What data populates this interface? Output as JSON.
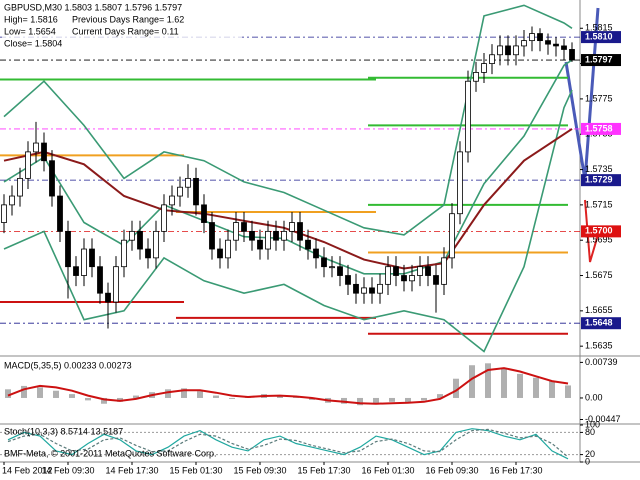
{
  "chart_data": [
    {
      "type": "candlestick",
      "title": "GBPUSD,M30  1.5803 1.5807 1.5796 1.5797",
      "annotations": [
        "High= 1.5816",
        "Previous Days Range= 1.62",
        "Low= 1.5654",
        "Current Days Range= 0.11",
        "Close= 1.5804"
      ],
      "xticks": [
        {
          "value": 0,
          "label": "14 Feb 2012"
        },
        {
          "value": 8,
          "label": "14 Feb 09:30"
        },
        {
          "value": 16,
          "label": "14 Feb 17:30"
        },
        {
          "value": 24,
          "label": "15 Feb 01:30"
        },
        {
          "value": 32,
          "label": "15 Feb 09:30"
        },
        {
          "value": 40,
          "label": "15 Feb 17:30"
        },
        {
          "value": 48,
          "label": "16 Feb 01:30"
        },
        {
          "value": 56,
          "label": "16 Feb 09:30"
        },
        {
          "value": 64,
          "label": "16 Feb 17:30"
        }
      ],
      "open": [
        1.5705,
        1.5715,
        1.572,
        1.573,
        1.5745,
        1.575,
        1.574,
        1.572,
        1.57,
        1.568,
        1.5675,
        1.569,
        1.568,
        1.5665,
        1.566,
        1.568,
        1.5695,
        1.57,
        1.569,
        1.5685,
        1.57,
        1.5715,
        1.572,
        1.5725,
        1.573,
        1.5715,
        1.5705,
        1.569,
        1.5685,
        1.5695,
        1.5705,
        1.57,
        1.5695,
        1.569,
        1.57,
        1.5695,
        1.57,
        1.5705,
        1.5695,
        1.569,
        1.5685,
        1.568,
        1.568,
        1.5675,
        1.567,
        1.5665,
        1.5668,
        1.5665,
        1.567,
        1.568,
        1.5675,
        1.5672,
        1.5675,
        1.568,
        1.5675,
        1.567,
        1.5685,
        1.571,
        1.5745,
        1.5785,
        1.579,
        1.5795,
        1.58,
        1.5805,
        1.58,
        1.5805,
        1.5808,
        1.5812,
        1.5808,
        1.5806,
        1.5805,
        1.5803
      ],
      "high": [
        1.5721,
        1.5726,
        1.5736,
        1.5751,
        1.5762,
        1.5756,
        1.5746,
        1.5726,
        1.5706,
        1.5686,
        1.5696,
        1.5696,
        1.5686,
        1.5671,
        1.5686,
        1.5701,
        1.5706,
        1.5706,
        1.5696,
        1.5706,
        1.5721,
        1.5726,
        1.5731,
        1.5738,
        1.5736,
        1.5721,
        1.5711,
        1.5696,
        1.5701,
        1.5711,
        1.5711,
        1.5706,
        1.5701,
        1.5706,
        1.5706,
        1.5706,
        1.5711,
        1.5711,
        1.5701,
        1.5696,
        1.5691,
        1.5686,
        1.5686,
        1.5681,
        1.5676,
        1.5674,
        1.5674,
        1.5676,
        1.5686,
        1.5686,
        1.5681,
        1.5681,
        1.5686,
        1.5686,
        1.5681,
        1.5691,
        1.5716,
        1.5751,
        1.5791,
        1.5796,
        1.5801,
        1.5806,
        1.5811,
        1.5811,
        1.5811,
        1.5814,
        1.5816,
        1.5815,
        1.5812,
        1.581,
        1.5809,
        1.5807
      ],
      "low": [
        1.5699,
        1.5709,
        1.5714,
        1.5724,
        1.5739,
        1.5734,
        1.5714,
        1.5694,
        1.5662,
        1.5669,
        1.5669,
        1.5674,
        1.5659,
        1.5645,
        1.5654,
        1.5674,
        1.5689,
        1.5684,
        1.5679,
        1.5679,
        1.5694,
        1.5709,
        1.5714,
        1.5719,
        1.5709,
        1.5699,
        1.5684,
        1.5679,
        1.5679,
        1.5689,
        1.5694,
        1.5689,
        1.5684,
        1.5684,
        1.5689,
        1.5689,
        1.5694,
        1.5689,
        1.5684,
        1.5679,
        1.5674,
        1.5674,
        1.5669,
        1.5664,
        1.5659,
        1.5659,
        1.5659,
        1.5659,
        1.5664,
        1.5669,
        1.5666,
        1.5666,
        1.5669,
        1.5669,
        1.5654,
        1.5664,
        1.5679,
        1.5704,
        1.5739,
        1.5779,
        1.5784,
        1.5789,
        1.5794,
        1.5794,
        1.5794,
        1.5799,
        1.5802,
        1.5802,
        1.58,
        1.5799,
        1.5797,
        1.5796
      ],
      "close": [
        1.5715,
        1.572,
        1.573,
        1.5745,
        1.575,
        1.574,
        1.572,
        1.57,
        1.568,
        1.5675,
        1.569,
        1.568,
        1.5665,
        1.566,
        1.568,
        1.5695,
        1.57,
        1.569,
        1.5685,
        1.57,
        1.5715,
        1.572,
        1.5725,
        1.573,
        1.5715,
        1.5705,
        1.569,
        1.5685,
        1.5695,
        1.5705,
        1.57,
        1.5695,
        1.569,
        1.57,
        1.5695,
        1.57,
        1.5705,
        1.5695,
        1.569,
        1.5685,
        1.568,
        1.568,
        1.5675,
        1.567,
        1.5665,
        1.5668,
        1.5665,
        1.567,
        1.568,
        1.5675,
        1.5672,
        1.5675,
        1.568,
        1.5675,
        1.567,
        1.5685,
        1.571,
        1.5745,
        1.5785,
        1.579,
        1.5795,
        1.58,
        1.5805,
        1.58,
        1.5805,
        1.5808,
        1.5812,
        1.5808,
        1.5806,
        1.5805,
        1.5803,
        1.5797
      ],
      "ylim": [
        1.563,
        1.5831
      ],
      "yticks": [
        1.5815,
        1.5795,
        1.5775,
        1.5755,
        1.5735,
        1.5715,
        1.5695,
        1.5675,
        1.5655,
        1.5635
      ],
      "line_x": [
        0,
        5,
        10,
        15,
        20,
        25,
        30,
        35,
        40,
        45,
        50,
        55,
        60,
        65,
        70,
        71
      ],
      "lines": [
        {
          "color": "#3a9a74",
          "values": [
            1.5765,
            1.5785,
            1.576,
            1.573,
            1.5745,
            1.574,
            1.5728,
            1.5722,
            1.5712,
            1.5702,
            1.5698,
            1.5715,
            1.5822,
            1.5828,
            1.5818,
            1.5815
          ]
        },
        {
          "color": "#3a9a74",
          "values": [
            1.569,
            1.57,
            1.565,
            1.5655,
            1.5685,
            1.5672,
            1.5665,
            1.567,
            1.5658,
            1.565,
            1.5655,
            1.565,
            1.5632,
            1.568,
            1.577,
            1.578
          ]
        },
        {
          "color": "#3a9a74",
          "values": [
            1.5728,
            1.5742,
            1.5705,
            1.5692,
            1.5715,
            1.5706,
            1.5697,
            1.5696,
            1.5685,
            1.5676,
            1.5676,
            1.5683,
            1.5727,
            1.5754,
            1.5794,
            1.5797
          ]
        },
        {
          "color": "#8b1a1a",
          "values": [
            1.574,
            1.5745,
            1.5738,
            1.572,
            1.5712,
            1.571,
            1.5706,
            1.5702,
            1.5694,
            1.5684,
            1.5679,
            1.5682,
            1.5715,
            1.574,
            1.5755,
            1.5758
          ]
        }
      ],
      "steps": [
        {
          "color": "#33bb33",
          "segments": [
            [
              0,
              46,
              1.5786
            ],
            [
              46,
              70,
              1.5787
            ],
            [
              46,
              70,
              1.576
            ],
            [
              46,
              70,
              1.5715
            ]
          ]
        },
        {
          "color": "#f0a020",
          "segments": [
            [
              0,
              22,
              1.5743
            ],
            [
              22,
              46,
              1.5711
            ],
            [
              46,
              70,
              1.5688
            ]
          ]
        },
        {
          "color": "#cc1111",
          "segments": [
            [
              0,
              22,
              1.566
            ],
            [
              22,
              46,
              1.5651
            ],
            [
              46,
              70,
              1.5642
            ]
          ]
        }
      ],
      "levels": [
        {
          "value": 1.581,
          "label": "1.5810",
          "color": "#1a1a8c"
        },
        {
          "value": 1.5797,
          "label": "1.5797",
          "color": "#000000"
        },
        {
          "value": 1.5758,
          "label": "1.5758",
          "color": "#ff33ff"
        },
        {
          "value": 1.5729,
          "label": "1.5729",
          "color": "#1a1a8c"
        },
        {
          "value": 1.57,
          "label": "1.5700",
          "color": "#dd1111"
        },
        {
          "value": 1.5648,
          "label": "1.5648",
          "color": "#1a1a8c"
        }
      ]
    },
    {
      "type": "bar",
      "title": "MACD(5,35,5) 0.00233 0.00273",
      "ylim": [
        -0.0052,
        0.0083
      ],
      "yticks": [
        0.00739,
        {
          "value": 0,
          "label": "0.00"
        },
        -0.00447
      ],
      "series": [
        {
          "color": "#b0b0b0",
          "values": [
            0.0018,
            0.0025,
            0.0022,
            0.0015,
            0.0008,
            -0.0005,
            -0.0012,
            -0.0008,
            0.0005,
            0.0012,
            0.0018,
            0.002,
            0.0014,
            0.0005,
            -0.0002,
            0.0003,
            0.0008,
            0.0005,
            0.0002,
            -0.0004,
            -0.001,
            -0.0012,
            -0.0015,
            -0.0012,
            -0.0008,
            -0.001,
            -0.0005,
            0.0008,
            0.004,
            0.0068,
            0.0072,
            0.0062,
            0.005,
            0.0042,
            0.0035,
            0.0026
          ]
        },
        {
          "color": "#cc1111",
          "values": [
            0.0005,
            0.0018,
            0.0025,
            0.0022,
            0.0015,
            0.0005,
            -0.0003,
            -0.0006,
            -0.0002,
            0.0006,
            0.0012,
            0.0016,
            0.0016,
            0.0011,
            0.0005,
            0.0002,
            0.0004,
            0.0005,
            0.0003,
            0.0,
            -0.0005,
            -0.0008,
            -0.0011,
            -0.0012,
            -0.0011,
            -0.001,
            -0.0008,
            -0.0002,
            0.0015,
            0.004,
            0.0058,
            0.0062,
            0.0055,
            0.0045,
            0.0035,
            0.003
          ]
        }
      ]
    },
    {
      "type": "line",
      "title": "Stoch(10,3,3) 8.5714 13.5187",
      "annotation": "BMF-Meta, © 2001-2011 MetaQuotes Software Corp.",
      "ylim": [
        0,
        100
      ],
      "yticks": [
        100,
        80,
        20,
        0
      ],
      "series": [
        {
          "color": "#20a8a0",
          "values": [
            60,
            80,
            70,
            30,
            20,
            50,
            75,
            60,
            30,
            20,
            40,
            70,
            85,
            60,
            40,
            30,
            60,
            70,
            50,
            40,
            30,
            20,
            40,
            70,
            60,
            40,
            20,
            30,
            80,
            90,
            85,
            70,
            60,
            75,
            30,
            8.5714
          ]
        },
        {
          "color": "#5a7a7a",
          "values": [
            55,
            70,
            75,
            50,
            30,
            35,
            60,
            65,
            45,
            28,
            30,
            55,
            75,
            70,
            50,
            35,
            45,
            62,
            58,
            45,
            35,
            25,
            30,
            55,
            62,
            50,
            30,
            28,
            60,
            85,
            88,
            78,
            65,
            70,
            50,
            13.5187
          ]
        }
      ]
    }
  ]
}
